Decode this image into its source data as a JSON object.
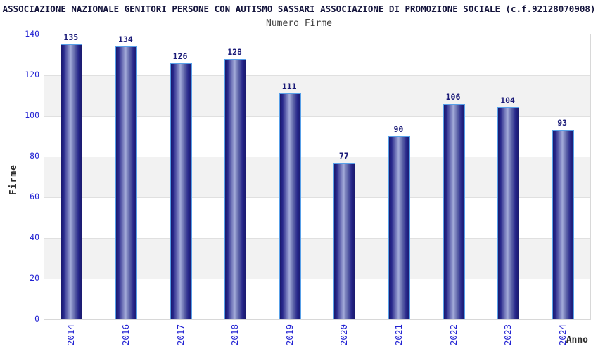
{
  "header": {
    "title": "ASSOCIAZIONE NAZIONALE GENITORI PERSONE CON AUTISMO SASSARI ASSOCIAZIONE DI PROMOZIONE SOCIALE (c.f.92128070908)",
    "subtitle": "Numero Firme"
  },
  "chart_data": {
    "type": "bar",
    "title": "Numero Firme",
    "categories": [
      "2014",
      "2016",
      "2017",
      "2018",
      "2019",
      "2020",
      "2021",
      "2022",
      "2023",
      "2024"
    ],
    "values": [
      135,
      134,
      126,
      128,
      111,
      77,
      90,
      106,
      104,
      93
    ],
    "xlabel": "Anno",
    "ylabel": "Firme",
    "ylim": [
      0,
      140
    ],
    "yticks": [
      0,
      20,
      40,
      60,
      80,
      100,
      120,
      140
    ],
    "grid": "alternating horizontal bands every 20 units, light gray gridlines",
    "legend": "none",
    "bar_labels_shown": true
  },
  "colors": {
    "page_background": "#ffffff",
    "title_text": "#14143c",
    "subtitle_text": "#3d3d3d",
    "axis_tick_text": "#2323d3",
    "value_label_text": "#191977",
    "axis_title_text": "#2e2e2e",
    "bar_dark": "#1a1a6e",
    "bar_highlight": "#a3abd9",
    "bar_border": "#58a0e8",
    "band_gray": "#f2f2f2",
    "gridline": "#e0e0e0",
    "plot_border": "#d8d8d8"
  }
}
